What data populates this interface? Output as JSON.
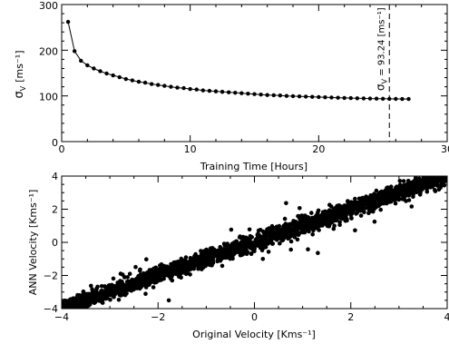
{
  "chart_data": [
    {
      "type": "line",
      "xlabel": "Training Time [Hours]",
      "ylabel_main": "σ",
      "ylabel_sub": "V",
      "ylabel_unit": "[ms⁻¹]",
      "xlim": [
        0,
        30
      ],
      "ylim": [
        0,
        300
      ],
      "xticks": [
        0,
        10,
        20,
        30
      ],
      "yticks": [
        0,
        100,
        200,
        300
      ],
      "x": [
        0.5,
        1.0,
        1.5,
        2.0,
        2.5,
        3.0,
        3.5,
        4.0,
        4.5,
        5.0,
        5.5,
        6.0,
        6.5,
        7.0,
        7.5,
        8.0,
        8.5,
        9.0,
        9.5,
        10.0,
        10.5,
        11.0,
        11.5,
        12.0,
        12.5,
        13.0,
        13.5,
        14.0,
        14.5,
        15.0,
        15.5,
        16.0,
        16.5,
        17.0,
        17.5,
        18.0,
        18.5,
        19.0,
        19.5,
        20.0,
        20.5,
        21.0,
        21.5,
        22.0,
        22.5,
        23.0,
        23.5,
        24.0,
        24.5,
        25.0,
        25.5,
        26.0,
        26.5,
        27.0
      ],
      "y": [
        262,
        198,
        177,
        167,
        160,
        154,
        149,
        145,
        141,
        137,
        134,
        131,
        129,
        126,
        124,
        122,
        120,
        118,
        117,
        115,
        114,
        112,
        111,
        110,
        109,
        108,
        107,
        106,
        105,
        104,
        103,
        102,
        101.5,
        101,
        100,
        99.5,
        99,
        98.5,
        98,
        97.5,
        97,
        96.5,
        96,
        95.5,
        95.2,
        94.8,
        94.5,
        94.2,
        94,
        93.8,
        93.5,
        93.4,
        93.3,
        93.24
      ],
      "annotation": {
        "x": 25.5,
        "label_main": "σ",
        "label_sub": "V",
        "label_text": " = 93.24 [ms⁻¹]"
      }
    },
    {
      "type": "scatter",
      "xlabel": "Original Velocity [Kms⁻¹]",
      "ylabel": "ANN Velocity [Kms⁻¹]",
      "xlim": [
        -4,
        4
      ],
      "ylim": [
        -4,
        4
      ],
      "xticks": [
        -4,
        -2,
        0,
        2,
        4
      ],
      "yticks": [
        -4,
        -2,
        0,
        2,
        4
      ],
      "trend": {
        "slope": 1.0,
        "intercept": 0.0,
        "scatter_sd": 0.25
      }
    }
  ]
}
